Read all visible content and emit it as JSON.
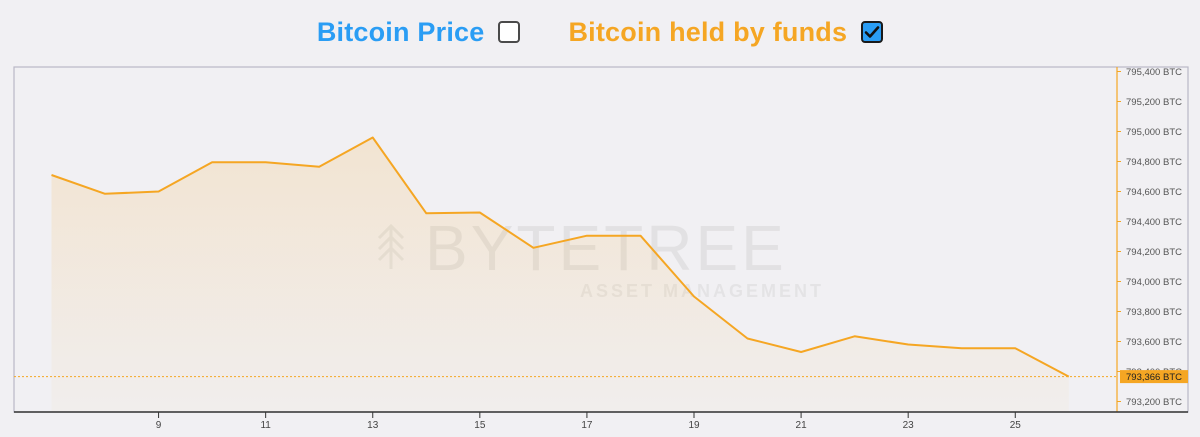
{
  "legend": {
    "price_label": "Bitcoin Price",
    "price_color": "#2a9df4",
    "price_checked": false,
    "funds_label": "Bitcoin held by funds",
    "funds_color": "#f5a623",
    "funds_checked": true
  },
  "watermark": {
    "brand": "BYTETREE",
    "tagline": "ASSET MANAGEMENT"
  },
  "current_value": {
    "label": "793,366 BTC",
    "value": 793366
  },
  "chart_data": {
    "type": "area",
    "x": [
      7,
      8,
      9,
      10,
      11,
      12,
      13,
      14,
      15,
      16,
      17,
      18,
      19,
      20,
      21,
      22,
      23,
      24,
      25,
      26
    ],
    "series": [
      {
        "values": [
          794710,
          794585,
          794600,
          794795,
          794795,
          794765,
          794960,
          794455,
          794460,
          794225,
          794305,
          794305,
          793900,
          793620,
          793530,
          793635,
          793580,
          793555,
          793555,
          793366
        ],
        "color": "#f5a623"
      }
    ],
    "x_ticks": [
      9,
      11,
      13,
      15,
      17,
      19,
      21,
      23,
      25
    ],
    "x_tick_labels": [
      "9",
      "11",
      "13",
      "15",
      "17",
      "19",
      "21",
      "23",
      "25"
    ],
    "xlim": [
      6.3,
      26.9
    ],
    "y_ticks": [
      793200,
      793400,
      793600,
      793800,
      794000,
      794200,
      794400,
      794600,
      794800,
      795000,
      795200,
      795400
    ],
    "y_tick_labels": [
      "793,200 BTC",
      "793,400 BTC",
      "793,600 BTC",
      "793,800 BTC",
      "794,000 BTC",
      "794,200 BTC",
      "794,400 BTC",
      "794,600 BTC",
      "794,800 BTC",
      "795,000 BTC",
      "795,200 BTC",
      "795,400 BTC"
    ],
    "ylim": [
      793130,
      795430
    ],
    "y_axis_side": "right",
    "grid": false,
    "legend_position": "top-center"
  }
}
